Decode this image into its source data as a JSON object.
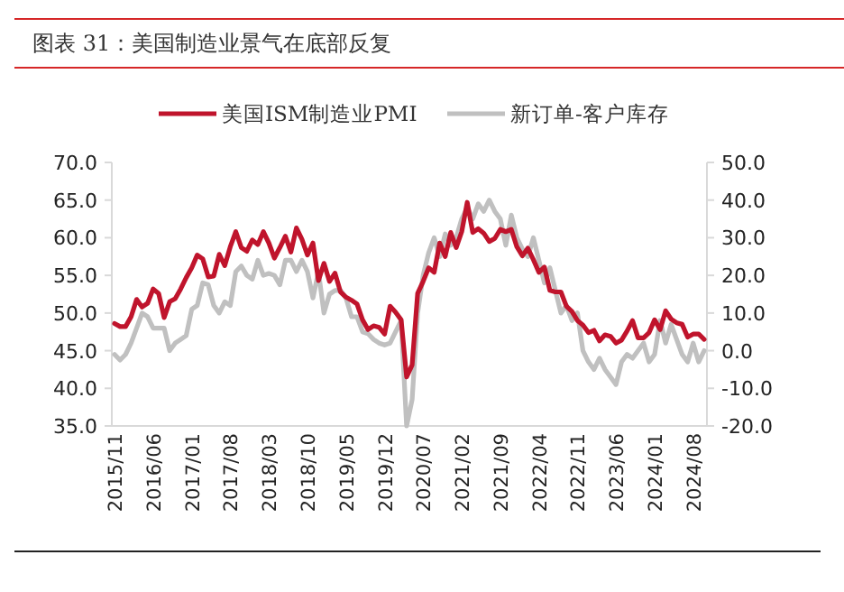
{
  "chart_data": {
    "type": "line",
    "title": "图表 31：美国制造业景气在底部反复",
    "legend": "top",
    "categories": [
      "2015/11",
      null,
      null,
      null,
      null,
      null,
      null,
      "2016/06",
      null,
      null,
      null,
      null,
      null,
      null,
      "2017/01",
      null,
      null,
      null,
      null,
      null,
      null,
      "2017/08",
      null,
      null,
      null,
      null,
      null,
      null,
      "2018/03",
      null,
      null,
      null,
      null,
      null,
      null,
      "2018/10",
      null,
      null,
      null,
      null,
      null,
      null,
      "2019/05",
      null,
      null,
      null,
      null,
      null,
      null,
      "2019/12",
      null,
      null,
      null,
      null,
      null,
      null,
      "2020/07",
      null,
      null,
      null,
      null,
      null,
      null,
      "2021/02",
      null,
      null,
      null,
      null,
      null,
      null,
      "2021/09",
      null,
      null,
      null,
      null,
      null,
      null,
      "2022/04",
      null,
      null,
      null,
      null,
      null,
      null,
      "2022/11",
      null,
      null,
      null,
      null,
      null,
      null,
      "2023/06",
      null,
      null,
      null,
      null,
      null,
      null,
      "2024/01",
      null,
      null,
      null,
      null,
      null,
      null,
      "2024/08",
      null,
      null
    ],
    "series": [
      {
        "name": "美国ISM制造业PMI",
        "color": "#c0142c",
        "values": [
          48.6,
          48.2,
          48.2,
          49.5,
          51.8,
          50.8,
          51.3,
          53.2,
          52.6,
          49.4,
          51.5,
          51.9,
          53.2,
          54.7,
          56.0,
          57.7,
          57.2,
          54.8,
          54.9,
          57.8,
          56.3,
          58.8,
          60.8,
          58.7,
          58.2,
          59.7,
          59.1,
          60.8,
          59.3,
          57.3,
          58.7,
          60.2,
          58.1,
          61.3,
          59.8,
          57.7,
          59.3,
          54.3,
          56.6,
          54.2,
          55.3,
          52.8,
          52.1,
          51.7,
          51.2,
          49.1,
          47.8,
          48.3,
          48.1,
          47.2,
          50.9,
          50.1,
          49.1,
          41.5,
          43.1,
          52.6,
          54.2,
          56.0,
          55.4,
          59.3,
          57.5,
          60.7,
          58.7,
          60.8,
          64.7,
          60.7,
          61.2,
          60.6,
          59.5,
          59.9,
          61.1,
          60.8,
          61.1,
          58.8,
          57.6,
          58.6,
          57.1,
          55.4,
          56.1,
          53.0,
          52.8,
          52.8,
          50.9,
          50.2,
          49.0,
          48.4,
          47.4,
          47.7,
          46.3,
          47.1,
          46.9,
          46.0,
          46.4,
          47.6,
          49.0,
          46.7,
          46.7,
          47.4,
          49.1,
          47.8,
          50.3,
          49.2,
          48.7,
          48.5,
          46.8,
          47.2,
          47.2,
          46.5
        ]
      },
      {
        "name": "新订单-客户库存",
        "color": "#c0c0c0",
        "axis": "y2",
        "values": [
          -1,
          -2.5,
          -1,
          2,
          6,
          10,
          9,
          6,
          6,
          6,
          0,
          2,
          3,
          4,
          11,
          12,
          18,
          17.5,
          12,
          10,
          13,
          12,
          21,
          22.5,
          20,
          19,
          24,
          20,
          20.5,
          20,
          17.5,
          24,
          24,
          21,
          24,
          21,
          14,
          21,
          10,
          15,
          16,
          16,
          14,
          9,
          9,
          5,
          4.5,
          3,
          2,
          1.5,
          2,
          5,
          8,
          -20,
          -13,
          10,
          20,
          26,
          30,
          25,
          31,
          28,
          30,
          35,
          38,
          35,
          39,
          37,
          40,
          37,
          35,
          28,
          36,
          30,
          27,
          25,
          30,
          24,
          18,
          22,
          16,
          10,
          12,
          8,
          10,
          0,
          -3,
          -5,
          -2,
          -5,
          -7,
          -9,
          -3,
          -1,
          -2,
          0,
          2,
          -3,
          -1,
          8,
          2,
          7,
          3,
          -1,
          -3,
          2,
          -3,
          0
        ]
      }
    ],
    "ylim": [
      35,
      70
    ],
    "yticks": [
      {
        "value": 35,
        "label": "35.0"
      },
      {
        "value": 40,
        "label": "40.0"
      },
      {
        "value": 45,
        "label": "45.0"
      },
      {
        "value": 50,
        "label": "50.0"
      },
      {
        "value": 55,
        "label": "55.0"
      },
      {
        "value": 60,
        "label": "60.0"
      },
      {
        "value": 65,
        "label": "65.0"
      },
      {
        "value": 70,
        "label": "70.0"
      }
    ],
    "y2lim": [
      -20,
      50
    ],
    "y2ticks": [
      {
        "value": -20,
        "label": "-20.0"
      },
      {
        "value": -10,
        "label": "-10.0"
      },
      {
        "value": 0,
        "label": "0.0"
      },
      {
        "value": 10,
        "label": "10.0"
      },
      {
        "value": 20,
        "label": "20.0"
      },
      {
        "value": 30,
        "label": "30.0"
      },
      {
        "value": 40,
        "label": "40.0"
      },
      {
        "value": 50,
        "label": "50.0"
      }
    ]
  }
}
